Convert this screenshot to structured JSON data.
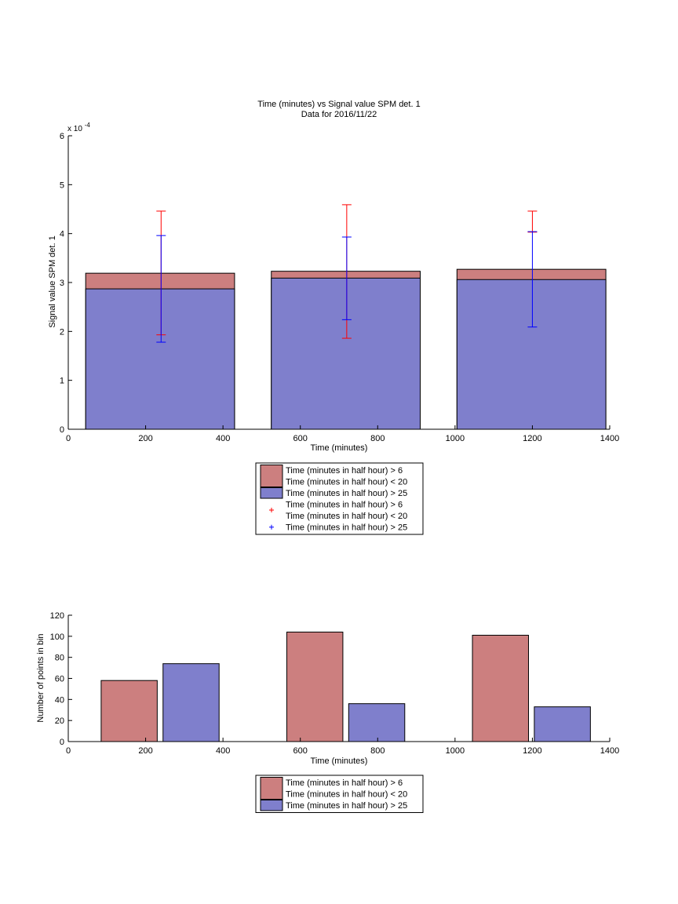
{
  "colors": {
    "red_fill": "#cc7f7f",
    "blue_fill": "#7f7fcc",
    "red_marker": "#ff0000",
    "blue_marker": "#0000ff",
    "bar_edge": "#000000"
  },
  "chart_data": [
    {
      "type": "bar",
      "title": "Time (minutes) vs Signal value SPM det. 1",
      "subtitle": "Data for 2016/11/22",
      "xlabel": "Time (minutes)",
      "ylabel": "Signal value SPM det. 1",
      "y_exponent_label": "x 10",
      "y_exponent_power": "-4",
      "xlim": [
        0,
        1400
      ],
      "ylim": [
        0,
        6
      ],
      "y_scale": 0.0001,
      "xticks": [
        0,
        200,
        400,
        600,
        800,
        1000,
        1200,
        1400
      ],
      "yticks": [
        0,
        1,
        2,
        3,
        4,
        5,
        6
      ],
      "grid": false,
      "legend_position": "below",
      "bars": [
        {
          "x_start": 45,
          "x_end": 430,
          "red": 3.19,
          "blue": 2.87
        },
        {
          "x_start": 525,
          "x_end": 910,
          "red": 3.23,
          "blue": 3.09
        },
        {
          "x_start": 1005,
          "x_end": 1390,
          "red": 3.27,
          "blue": 3.06
        }
      ],
      "errorbars": [
        {
          "name": "Time (minutes in half hour) > 6\nTime (minutes in half hour) < 20",
          "color": "red",
          "x": [
            240,
            720,
            1200
          ],
          "low": [
            1.93,
            1.86,
            4.03
          ],
          "high": [
            4.46,
            4.59,
            4.46
          ]
        },
        {
          "name": "Time (minutes in half hour) > 25",
          "color": "blue",
          "x": [
            240,
            720,
            1200
          ],
          "low": [
            1.78,
            2.24,
            2.09
          ],
          "high": [
            3.96,
            3.93,
            4.04
          ]
        }
      ],
      "legend": [
        {
          "kind": "patch",
          "color": "red",
          "lines": [
            "Time (minutes in half hour) > 6",
            "Time (minutes in half hour) < 20"
          ]
        },
        {
          "kind": "patch",
          "color": "blue",
          "lines": [
            "Time (minutes in half hour) > 25"
          ]
        },
        {
          "kind": "marker",
          "color": "red",
          "lines": [
            "Time (minutes in half hour) > 6",
            "Time (minutes in half hour) < 20"
          ]
        },
        {
          "kind": "marker",
          "color": "blue",
          "lines": [
            "Time (minutes in half hour) > 25"
          ]
        }
      ]
    },
    {
      "type": "bar",
      "xlabel": "Time (minutes)",
      "ylabel": "Number of points in bin",
      "xlim": [
        0,
        1400
      ],
      "ylim": [
        0,
        120
      ],
      "xticks": [
        0,
        200,
        400,
        600,
        800,
        1000,
        1200,
        1400
      ],
      "yticks": [
        0,
        20,
        40,
        60,
        80,
        100,
        120
      ],
      "grid": false,
      "legend_position": "below",
      "bars": [
        {
          "color": "red",
          "x_start": 85,
          "x_end": 230,
          "value": 58
        },
        {
          "color": "blue",
          "x_start": 245,
          "x_end": 390,
          "value": 74
        },
        {
          "color": "red",
          "x_start": 565,
          "x_end": 710,
          "value": 104
        },
        {
          "color": "blue",
          "x_start": 725,
          "x_end": 870,
          "value": 36
        },
        {
          "color": "red",
          "x_start": 1045,
          "x_end": 1190,
          "value": 101
        },
        {
          "color": "blue",
          "x_start": 1205,
          "x_end": 1350,
          "value": 33
        }
      ],
      "legend": [
        {
          "kind": "patch",
          "color": "red",
          "lines": [
            "Time (minutes in half hour) > 6",
            "Time (minutes in half hour) < 20"
          ]
        },
        {
          "kind": "patch",
          "color": "blue",
          "lines": [
            "Time (minutes in half hour) > 25"
          ]
        }
      ]
    }
  ]
}
